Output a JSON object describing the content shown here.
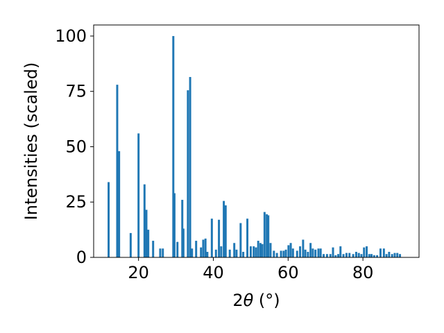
{
  "chart_data": {
    "type": "bar",
    "title": "",
    "xlabel_main": "2",
    "xlabel_theta": "θ",
    "xlabel_unit": " (°)",
    "ylabel": "Intensities (scaled)",
    "xlim": [
      8,
      95
    ],
    "ylim": [
      0,
      105
    ],
    "xticks": [
      20,
      40,
      60,
      80
    ],
    "yticks": [
      0,
      25,
      50,
      75,
      100
    ],
    "grid": false,
    "bar_color": "#1f77b4",
    "bar_width": 0.55,
    "series": [
      {
        "x": [
          12.0,
          14.3,
          14.8,
          17.9,
          20.0,
          21.6,
          22.1,
          22.6,
          23.9,
          25.8,
          26.5,
          29.3,
          29.6,
          30.4,
          31.7,
          32.0,
          33.2,
          33.8,
          34.3,
          35.4,
          36.7,
          37.3,
          37.9,
          38.4,
          39.6,
          40.7,
          41.5,
          42.1,
          42.8,
          43.3,
          44.4,
          45.6,
          46.2,
          47.3,
          48.0,
          49.1,
          50.0,
          50.8,
          51.4,
          52.0,
          52.6,
          53.1,
          53.7,
          54.3,
          54.7,
          55.3,
          56.2,
          57.0,
          58.1,
          58.8,
          59.4,
          60.1,
          60.7,
          61.3,
          62.4,
          63.2,
          64.0,
          64.6,
          65.3,
          66.0,
          66.6,
          67.3,
          68.1,
          68.7,
          69.5,
          70.4,
          71.3,
          72.0,
          72.7,
          73.4,
          74.0,
          74.8,
          75.6,
          76.4,
          77.4,
          78.2,
          78.9,
          79.6,
          80.3,
          81.0,
          81.7,
          82.3,
          83.0,
          83.8,
          84.7,
          85.6,
          86.3,
          87.0,
          87.8,
          88.5,
          89.2,
          89.9
        ],
        "values": [
          34,
          78,
          48,
          11,
          56,
          33,
          21.5,
          12.5,
          7.5,
          4,
          4,
          100,
          29,
          7,
          26,
          13,
          75.5,
          81.5,
          4,
          7.5,
          4.5,
          8,
          8.5,
          2.5,
          17.5,
          3.5,
          17,
          5,
          25.5,
          23.5,
          3.5,
          6.5,
          3.5,
          15.5,
          2.5,
          17.5,
          5,
          5,
          4.5,
          7.5,
          6.5,
          6,
          20.5,
          19.5,
          19,
          6.5,
          3,
          2,
          3,
          3,
          3.5,
          5.5,
          6.5,
          4,
          3,
          5,
          8,
          3.5,
          2.5,
          6.5,
          4,
          3.5,
          4,
          4,
          1.5,
          1.5,
          1.5,
          4.5,
          1,
          1.5,
          5,
          1.5,
          2,
          2,
          1.5,
          2.5,
          2,
          1.5,
          4.5,
          5,
          1.5,
          1.5,
          1,
          1,
          4,
          4,
          1.5,
          2.5,
          1.5,
          2,
          2,
          1.5
        ]
      }
    ]
  }
}
